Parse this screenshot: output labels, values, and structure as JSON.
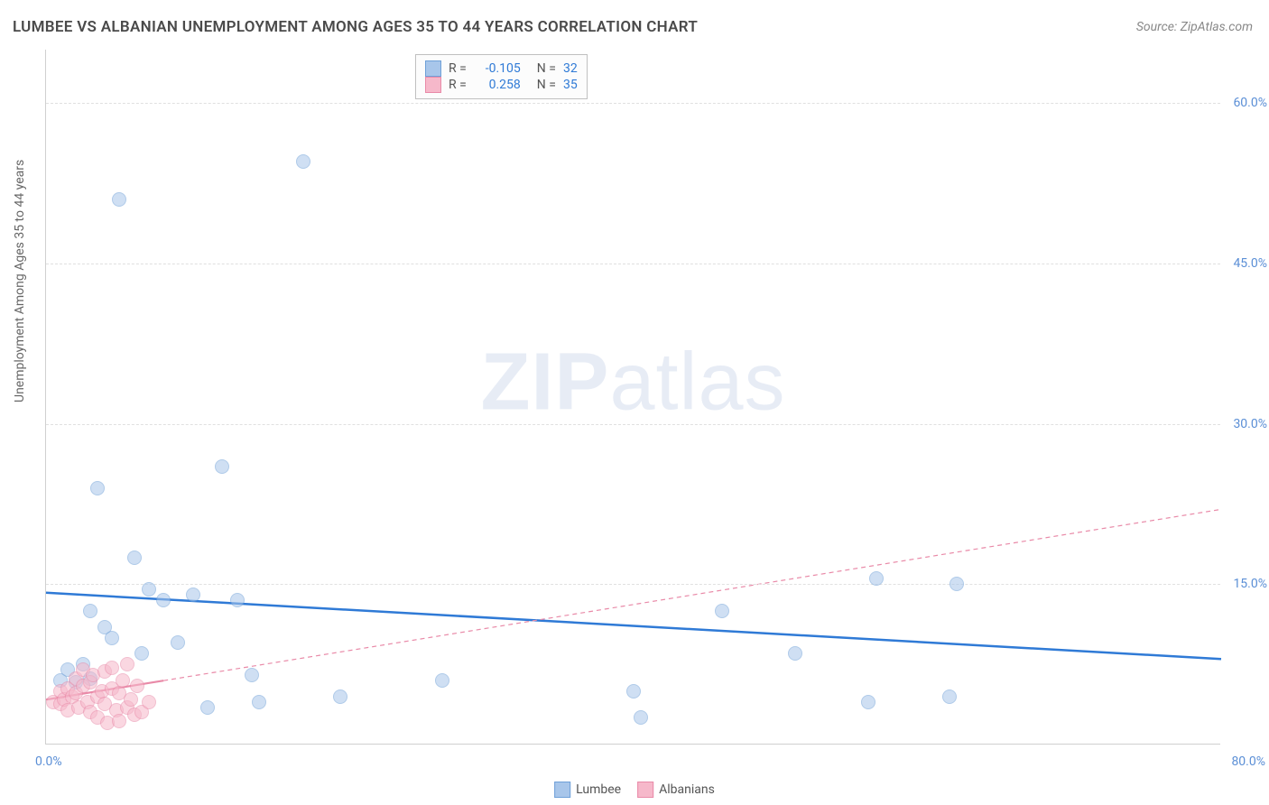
{
  "title": "LUMBEE VS ALBANIAN UNEMPLOYMENT AMONG AGES 35 TO 44 YEARS CORRELATION CHART",
  "source": "Source: ZipAtlas.com",
  "ylabel": "Unemployment Among Ages 35 to 44 years",
  "watermark_bold": "ZIP",
  "watermark_rest": "atlas",
  "chart": {
    "type": "scatter",
    "xlim": [
      0,
      80
    ],
    "ylim": [
      0,
      65
    ],
    "yticks": [
      15,
      30,
      45,
      60
    ],
    "ytick_labels": [
      "15.0%",
      "30.0%",
      "45.0%",
      "60.0%"
    ],
    "xticks": [
      0,
      80
    ],
    "xtick_labels": [
      "0.0%",
      "80.0%"
    ],
    "background_color": "#ffffff",
    "grid_color": "#e0e0e0",
    "axis_color": "#d0d0d0",
    "tick_label_color": "#5b8fd6",
    "marker_radius": 8,
    "marker_opacity": 0.55,
    "series": [
      {
        "name": "Lumbee",
        "color_fill": "#a8c6ea",
        "color_stroke": "#6fa0d8",
        "trend": {
          "x1": 0,
          "y1": 14.2,
          "x2": 80,
          "y2": 8.0,
          "color": "#2f7ad6",
          "width": 2.5,
          "dash": "none"
        },
        "points": [
          [
            1,
            6
          ],
          [
            1.5,
            7
          ],
          [
            2,
            5.8
          ],
          [
            2.5,
            7.5
          ],
          [
            3,
            6.2
          ],
          [
            3,
            12.5
          ],
          [
            3.5,
            24
          ],
          [
            4,
            11
          ],
          [
            4.5,
            10
          ],
          [
            5,
            51
          ],
          [
            6,
            17.5
          ],
          [
            6.5,
            8.5
          ],
          [
            7,
            14.5
          ],
          [
            8,
            13.5
          ],
          [
            9,
            9.5
          ],
          [
            10,
            14
          ],
          [
            11,
            3.5
          ],
          [
            12,
            26
          ],
          [
            13,
            13.5
          ],
          [
            14,
            6.5
          ],
          [
            14.5,
            4
          ],
          [
            17.5,
            54.5
          ],
          [
            20,
            4.5
          ],
          [
            27,
            6
          ],
          [
            40,
            5
          ],
          [
            40.5,
            2.5
          ],
          [
            46,
            12.5
          ],
          [
            51,
            8.5
          ],
          [
            56,
            4
          ],
          [
            56.5,
            15.5
          ],
          [
            61.5,
            4.5
          ],
          [
            62,
            15
          ]
        ]
      },
      {
        "name": "Albanians",
        "color_fill": "#f6b8ca",
        "color_stroke": "#e98aa8",
        "trend": {
          "x1": 0,
          "y1": 4.2,
          "x2": 80,
          "y2": 22.0,
          "color": "#e98aa8",
          "width": 1.2,
          "dash": "5,4"
        },
        "trend_solid_until_x": 8,
        "points": [
          [
            0.5,
            4
          ],
          [
            1,
            3.8
          ],
          [
            1,
            5
          ],
          [
            1.2,
            4.2
          ],
          [
            1.5,
            5.2
          ],
          [
            1.5,
            3.2
          ],
          [
            1.8,
            4.5
          ],
          [
            2,
            4.8
          ],
          [
            2,
            6.2
          ],
          [
            2.2,
            3.5
          ],
          [
            2.5,
            5.5
          ],
          [
            2.5,
            7
          ],
          [
            2.8,
            4
          ],
          [
            3,
            5.8
          ],
          [
            3,
            3
          ],
          [
            3.2,
            6.5
          ],
          [
            3.5,
            4.5
          ],
          [
            3.5,
            2.5
          ],
          [
            3.8,
            5
          ],
          [
            4,
            6.8
          ],
          [
            4,
            3.8
          ],
          [
            4.2,
            2
          ],
          [
            4.5,
            5.2
          ],
          [
            4.5,
            7.2
          ],
          [
            4.8,
            3.2
          ],
          [
            5,
            4.8
          ],
          [
            5,
            2.2
          ],
          [
            5.2,
            6
          ],
          [
            5.5,
            3.5
          ],
          [
            5.5,
            7.5
          ],
          [
            5.8,
            4.2
          ],
          [
            6,
            2.8
          ],
          [
            6.2,
            5.5
          ],
          [
            6.5,
            3
          ],
          [
            7,
            4
          ]
        ]
      }
    ]
  },
  "correlation_legend": {
    "rows": [
      {
        "swatch_fill": "#a8c6ea",
        "swatch_stroke": "#6fa0d8",
        "r_label": "R =",
        "r_value": "-0.105",
        "n_label": "N =",
        "n_value": "32"
      },
      {
        "swatch_fill": "#f6b8ca",
        "swatch_stroke": "#e98aa8",
        "r_label": "R =",
        "r_value": "0.258",
        "n_label": "N =",
        "n_value": "35"
      }
    ],
    "label_color": "#555",
    "value_color": "#2f7ad6"
  },
  "bottom_legend": [
    {
      "swatch_fill": "#a8c6ea",
      "swatch_stroke": "#6fa0d8",
      "label": "Lumbee"
    },
    {
      "swatch_fill": "#f6b8ca",
      "swatch_stroke": "#e98aa8",
      "label": "Albanians"
    }
  ]
}
